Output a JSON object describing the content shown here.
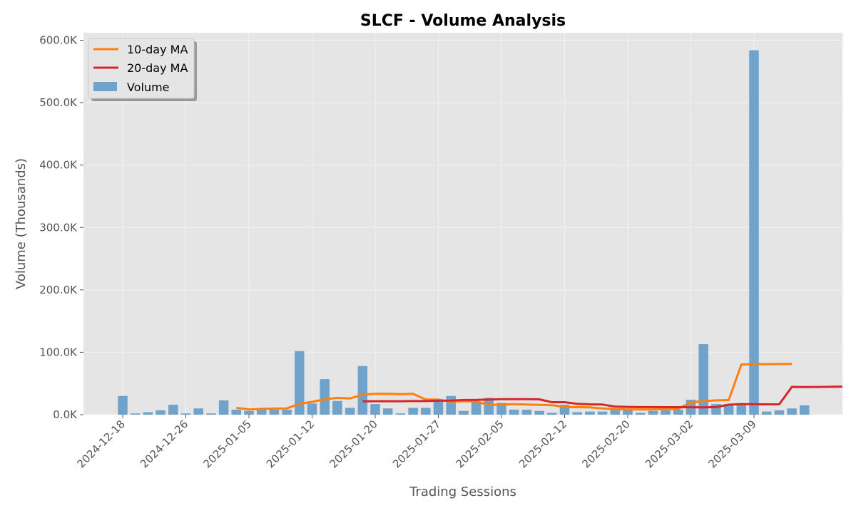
{
  "chart_data": {
    "type": "bar",
    "title": "SLCF - Volume Analysis",
    "xlabel": "Trading Sessions",
    "ylabel": "Volume (Thousands)",
    "ylim": [
      0,
      612000
    ],
    "y_ticks": [
      0,
      100000,
      200000,
      300000,
      400000,
      500000,
      600000
    ],
    "y_tick_labels": [
      "0.0K",
      "100.0K",
      "200.0K",
      "300.0K",
      "400.0K",
      "500.0K",
      "600.0K"
    ],
    "x_tick_labels": [
      "2024-12-18",
      "2024-12-26",
      "2025-01-05",
      "2025-01-12",
      "2025-01-20",
      "2025-01-27",
      "2025-02-05",
      "2025-02-12",
      "2025-02-20",
      "2025-03-02",
      "2025-03-09"
    ],
    "x_tick_indices": [
      0,
      5,
      10,
      15,
      20,
      25,
      30,
      35,
      40,
      45,
      50
    ],
    "grid": true,
    "legend_position": "top-left",
    "colors": {
      "background": "#e5e5e5",
      "grid": "#f2f2f2",
      "volume": "#6fa3cb",
      "ma10": "#ff7f0e",
      "ma20": "#d62728"
    },
    "series": [
      {
        "name": "Volume",
        "kind": "bar",
        "values": [
          30000,
          2000,
          4000,
          7000,
          16000,
          2000,
          10000,
          2000,
          23000,
          8000,
          6000,
          9000,
          8000,
          8000,
          102000,
          18000,
          57000,
          22000,
          11000,
          78000,
          17000,
          10000,
          2000,
          11000,
          11000,
          22000,
          30000,
          6000,
          21000,
          27000,
          19000,
          8000,
          8000,
          6000,
          3000,
          16000,
          4000,
          5000,
          5000,
          8000,
          9000,
          3000,
          6000,
          7000,
          8000,
          24000,
          113000,
          17000,
          17000,
          18000,
          584000,
          5000,
          7000,
          10000,
          15000
        ]
      },
      {
        "name": "10-day MA",
        "kind": "line",
        "start_index": 9,
        "values": [
          11000,
          8500,
          9300,
          9800,
          10000,
          17500,
          20500,
          24500,
          27000,
          26000,
          32000,
          33600,
          33500,
          33000,
          33300,
          24300,
          24300,
          20700,
          21500,
          21100,
          15300,
          16400,
          16900,
          16300,
          15600,
          15200,
          12300,
          12000,
          11600,
          10100,
          9000,
          8400,
          8300,
          8400,
          8900,
          9000,
          20000,
          21700,
          22900,
          23400,
          80500,
          80700,
          81000,
          81200,
          81400
        ]
      },
      {
        "name": "20-day MA",
        "kind": "line",
        "start_index": 19,
        "values": [
          21500,
          21600,
          21600,
          21600,
          21800,
          21800,
          22400,
          22600,
          23500,
          23600,
          24300,
          24800,
          24800,
          24800,
          24600,
          20000,
          20000,
          17500,
          16600,
          16200,
          13000,
          12500,
          12100,
          12100,
          12000,
          12000,
          11900,
          11800,
          12100,
          16000,
          17000,
          16700,
          16600,
          16600,
          44500,
          44300,
          44400,
          44600,
          45000
        ]
      }
    ]
  }
}
